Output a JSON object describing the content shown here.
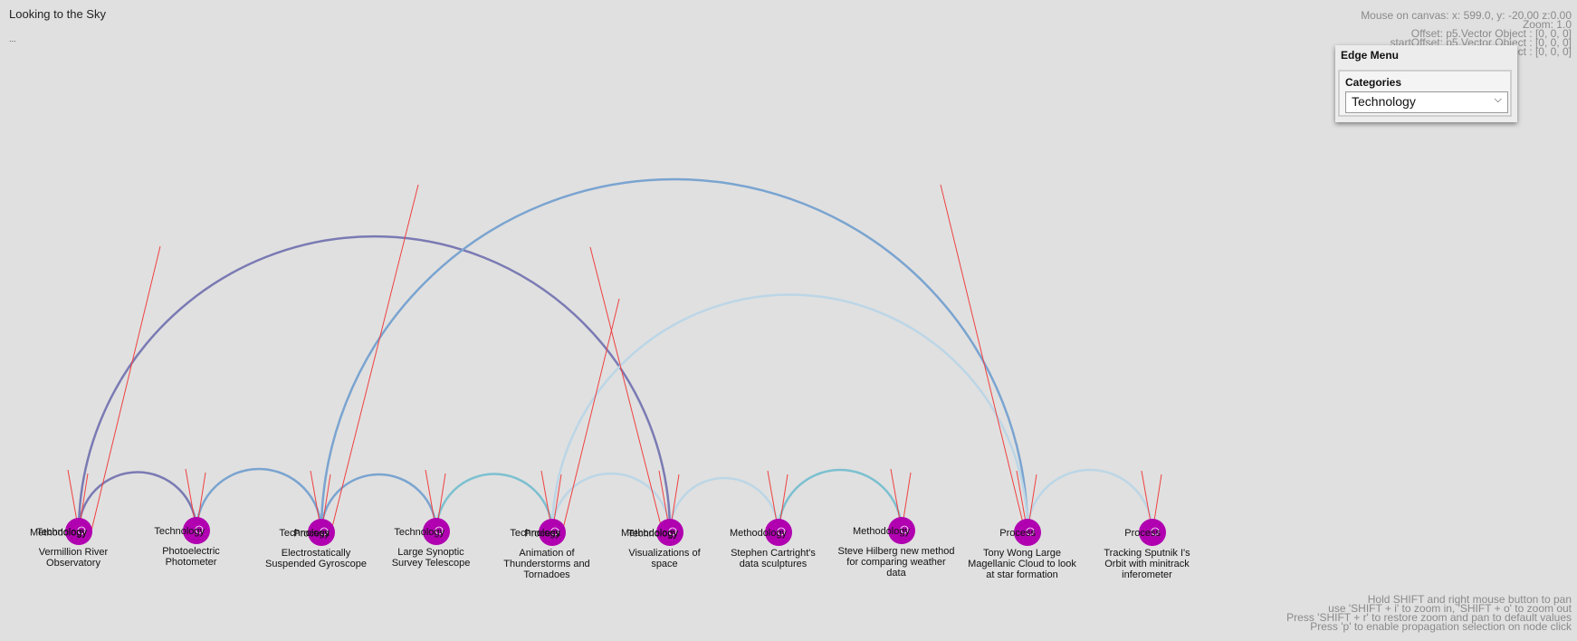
{
  "app": {
    "title": "Looking to the Sky",
    "subtitle": "..."
  },
  "debug_lines": [
    "Mouse on canvas: x: 599.0, y: -20.00 z:0.00",
    "Zoom: 1.0",
    "Offset: p5.Vector Object : [0, 0, 0]",
    "startOffset: p5.Vector Object : [0, 0, 0]",
    "ect : [0, 0, 0]"
  ],
  "hints": [
    "Hold SHIFT and right mouse button to pan",
    "use 'SHIFT + i' to zoom in, 'SHIFT + o' to zoom  out",
    "Press 'SHIFT + r' to restore zoom and pan to default values",
    "Press 'p' to enable propagation selection on node click"
  ],
  "edge_menu": {
    "title": "Edge Menu",
    "categories_label": "Categories",
    "selected": "Technology"
  },
  "colors": {
    "background": "#e0e0e0",
    "node": "#b000b0",
    "node_ring": "#ffffff",
    "spike": "#f04040",
    "arc_purple": "#7a7ab4",
    "arc_blue": "#7aa4d0",
    "arc_teal": "#7cc0d0",
    "arc_light": "#bcd6e6"
  },
  "diagram": {
    "nodes": [
      {
        "id": "n1",
        "label": "Vermillion River Observatory",
        "labels": [
          "Technology",
          "Methodology"
        ]
      },
      {
        "id": "n2",
        "label": "Photoelectric Photometer",
        "labels": [
          "Technology"
        ]
      },
      {
        "id": "n3",
        "label": "Electrostatically Suspended Gyroscope",
        "labels": [
          "Technology",
          "Process"
        ]
      },
      {
        "id": "n4",
        "label": "Large Synoptic Survey Telescope",
        "labels": [
          "Technology"
        ]
      },
      {
        "id": "n5",
        "label": "Animation of Thunderstorms and Tornadoes",
        "labels": [
          "Technology",
          "Process"
        ]
      },
      {
        "id": "n6",
        "label": "Visualizations of space",
        "labels": [
          "Methodology",
          "Technology"
        ]
      },
      {
        "id": "n7",
        "label": "Stephen Cartright's data sculptures",
        "labels": [
          "Methodology"
        ]
      },
      {
        "id": "n8",
        "label": "Steve Hilberg new method for comparing weather data",
        "labels": [
          "Methodology"
        ]
      },
      {
        "id": "n9",
        "label": "Tony Wong Large Magellanic Cloud to look at star formation",
        "labels": [
          "Process"
        ]
      },
      {
        "id": "n10",
        "label": "Tracking Sputnik I's Orbit with minitrack inferometer",
        "labels": [
          "Process"
        ]
      }
    ],
    "edges": [
      {
        "from": "n1",
        "to": "n2",
        "color": "arc_purple"
      },
      {
        "from": "n2",
        "to": "n3",
        "color": "arc_blue"
      },
      {
        "from": "n3",
        "to": "n4",
        "color": "arc_blue"
      },
      {
        "from": "n4",
        "to": "n5",
        "color": "arc_teal"
      },
      {
        "from": "n5",
        "to": "n6",
        "color": "arc_light"
      },
      {
        "from": "n6",
        "to": "n7",
        "color": "arc_light"
      },
      {
        "from": "n7",
        "to": "n8",
        "color": "arc_teal"
      },
      {
        "from": "n9",
        "to": "n10",
        "color": "arc_light"
      },
      {
        "from": "n1",
        "to": "n6",
        "color": "arc_purple"
      },
      {
        "from": "n3",
        "to": "n9",
        "color": "arc_blue"
      },
      {
        "from": "n5",
        "to": "n9",
        "color": "arc_light"
      }
    ]
  }
}
